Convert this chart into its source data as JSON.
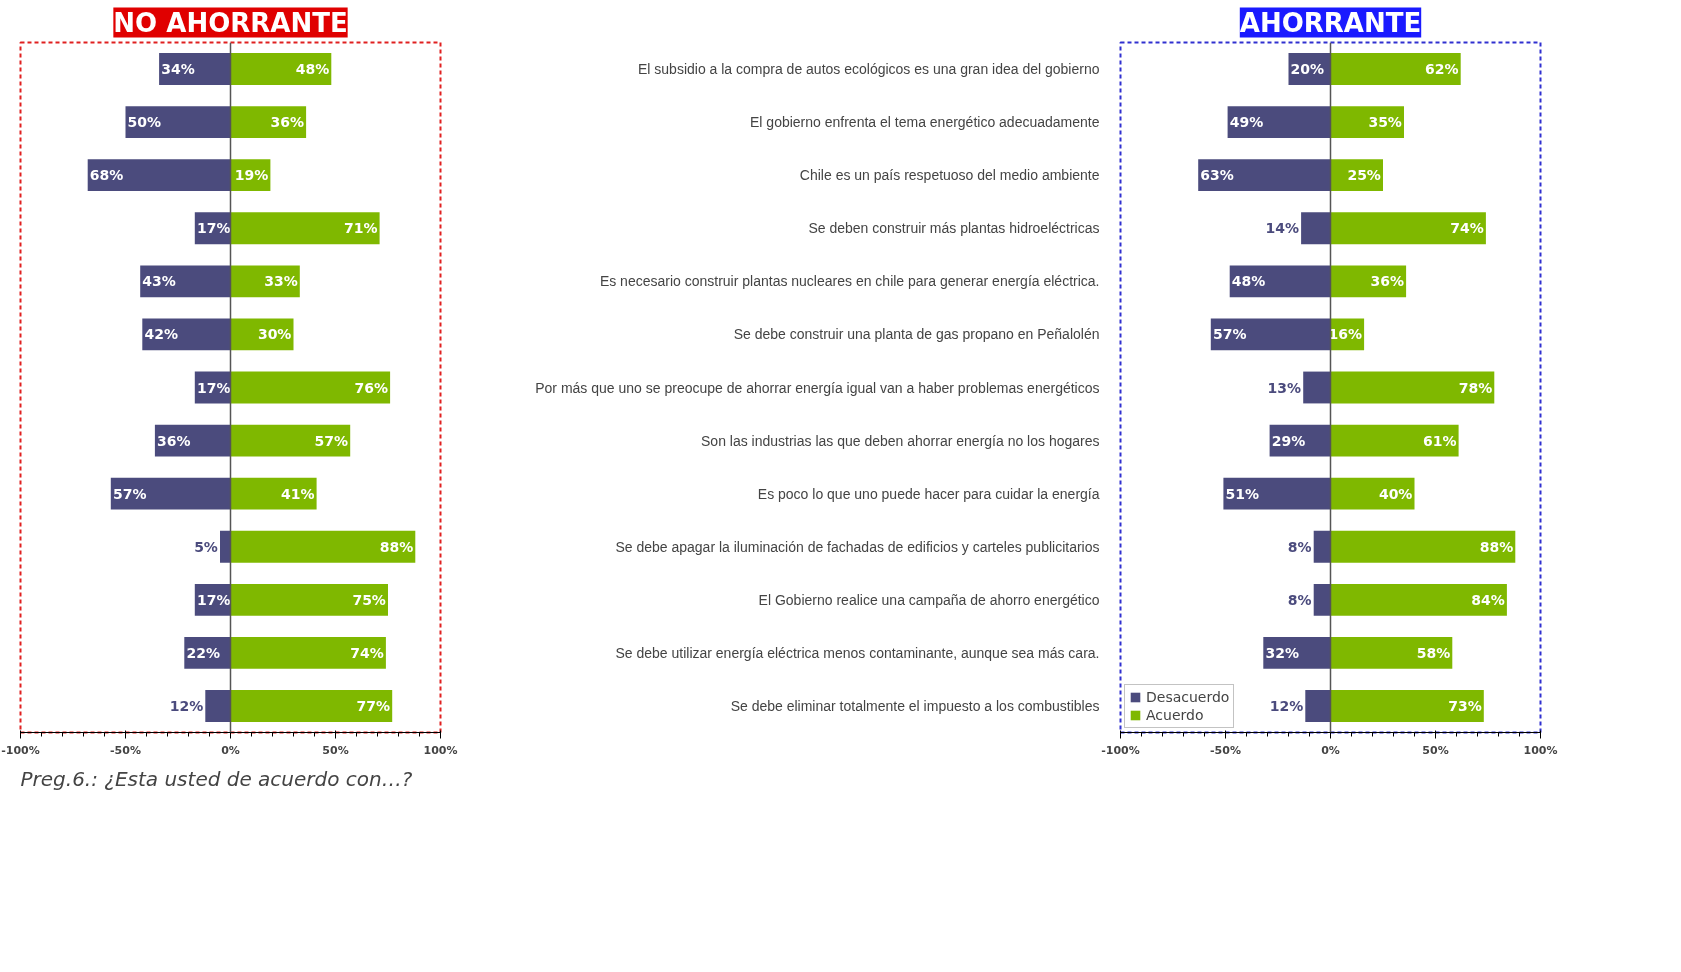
{
  "chart_data": [
    {
      "type": "bar",
      "orientation": "horizontal",
      "title": "NO AHORRANTE",
      "tick_labels": "x",
      "legend": false,
      "categories": [
        null,
        null,
        null,
        null,
        null,
        null,
        null,
        null,
        null,
        null,
        null,
        null,
        null
      ],
      "xlim": [
        -100,
        100
      ],
      "xticks": [
        {
          "value": -100,
          "label": "-100%"
        },
        {
          "value": -50,
          "label": "-50%"
        },
        {
          "value": 0,
          "label": "0%"
        },
        {
          "value": 50,
          "label": "50%"
        },
        {
          "value": 100,
          "label": "100%"
        }
      ],
      "annotations": [
        "Preg.6.:   ¿Esta usted de acuerdo con…?"
      ],
      "series": [
        {
          "color": "#4b4b7d",
          "values": [
            34,
            50,
            68,
            17,
            43,
            42,
            17,
            36,
            57,
            5,
            17,
            22,
            12
          ],
          "base": [
            -34,
            -50,
            -68,
            -17,
            -43,
            -42,
            -17,
            -36,
            -57,
            -5,
            -17,
            -22,
            -12
          ],
          "value_labels": [
            "34%",
            "50%",
            "68%",
            "17%",
            "43%",
            "42%",
            "17%",
            "36%",
            "57%",
            "5%",
            "17%",
            "22%",
            "12%"
          ]
        },
        {
          "color": "#7fb800",
          "values": [
            48,
            36,
            19,
            71,
            33,
            30,
            76,
            57,
            41,
            88,
            75,
            74,
            77
          ],
          "value_labels": [
            "48%",
            "36%",
            "19%",
            "71%",
            "33%",
            "30%",
            "76%",
            "57%",
            "41%",
            "88%",
            "75%",
            "74%",
            "77%"
          ]
        }
      ]
    },
    {
      "type": "bar",
      "orientation": "horizontal",
      "title": "AHORRANTE",
      "legend": "bottom",
      "categories": [
        "El subsidio a la compra de autos ecológicos es una gran idea del gobierno",
        "El gobierno enfrenta el tema energético adecuadamente",
        "Chile es un país respetuoso del medio ambiente",
        "Se deben construir más plantas hidroeléctricas",
        "Es necesario construir plantas nucleares en chile para generar energía eléctrica.",
        "Se debe construir una planta de gas propano en Peñalolén",
        "Por más que uno se preocupe de ahorrar energía igual van a haber problemas energéticos",
        "Son las industrias las que deben ahorrar energía no los hogares",
        "Es poco lo que uno puede hacer para cuidar la energía",
        "Se debe apagar la iluminación de fachadas de edificios y carteles publicitarios",
        "El Gobierno realice una campaña de ahorro energético",
        "Se debe utilizar energía eléctrica menos contaminante, aunque sea más cara.",
        "Se debe eliminar totalmente el impuesto a los combustibles"
      ],
      "xlim": [
        -100,
        100
      ],
      "xticks": [
        {
          "value": -100,
          "label": "-100%"
        },
        {
          "value": -50,
          "label": "-50%"
        },
        {
          "value": 0,
          "label": "0%"
        },
        {
          "value": 50,
          "label": "50%"
        },
        {
          "value": 100,
          "label": "100%"
        }
      ],
      "series": [
        {
          "name": "Desacuerdo",
          "color": "#4b4b7d",
          "values": [
            20,
            49,
            63,
            14,
            48,
            57,
            13,
            29,
            51,
            8,
            8,
            32,
            12
          ],
          "base": [
            -20,
            -49,
            -63,
            -14,
            -48,
            -57,
            -13,
            -29,
            -51,
            -8,
            -8,
            -32,
            -12
          ],
          "value_labels": [
            "20%",
            "49%",
            "63%",
            "14%",
            "48%",
            "57%",
            "13%",
            "29%",
            "51%",
            "8%",
            "8%",
            "32%",
            "12%"
          ]
        },
        {
          "name": "Acuerdo",
          "color": "#7fb800",
          "values": [
            62,
            35,
            25,
            74,
            36,
            16,
            78,
            61,
            40,
            88,
            84,
            58,
            73
          ],
          "value_labels": [
            "62%",
            "35%",
            "25%",
            "74%",
            "36%",
            "16%",
            "78%",
            "61%",
            "40%",
            "88%",
            "84%",
            "58%",
            "73%"
          ]
        }
      ]
    }
  ]
}
